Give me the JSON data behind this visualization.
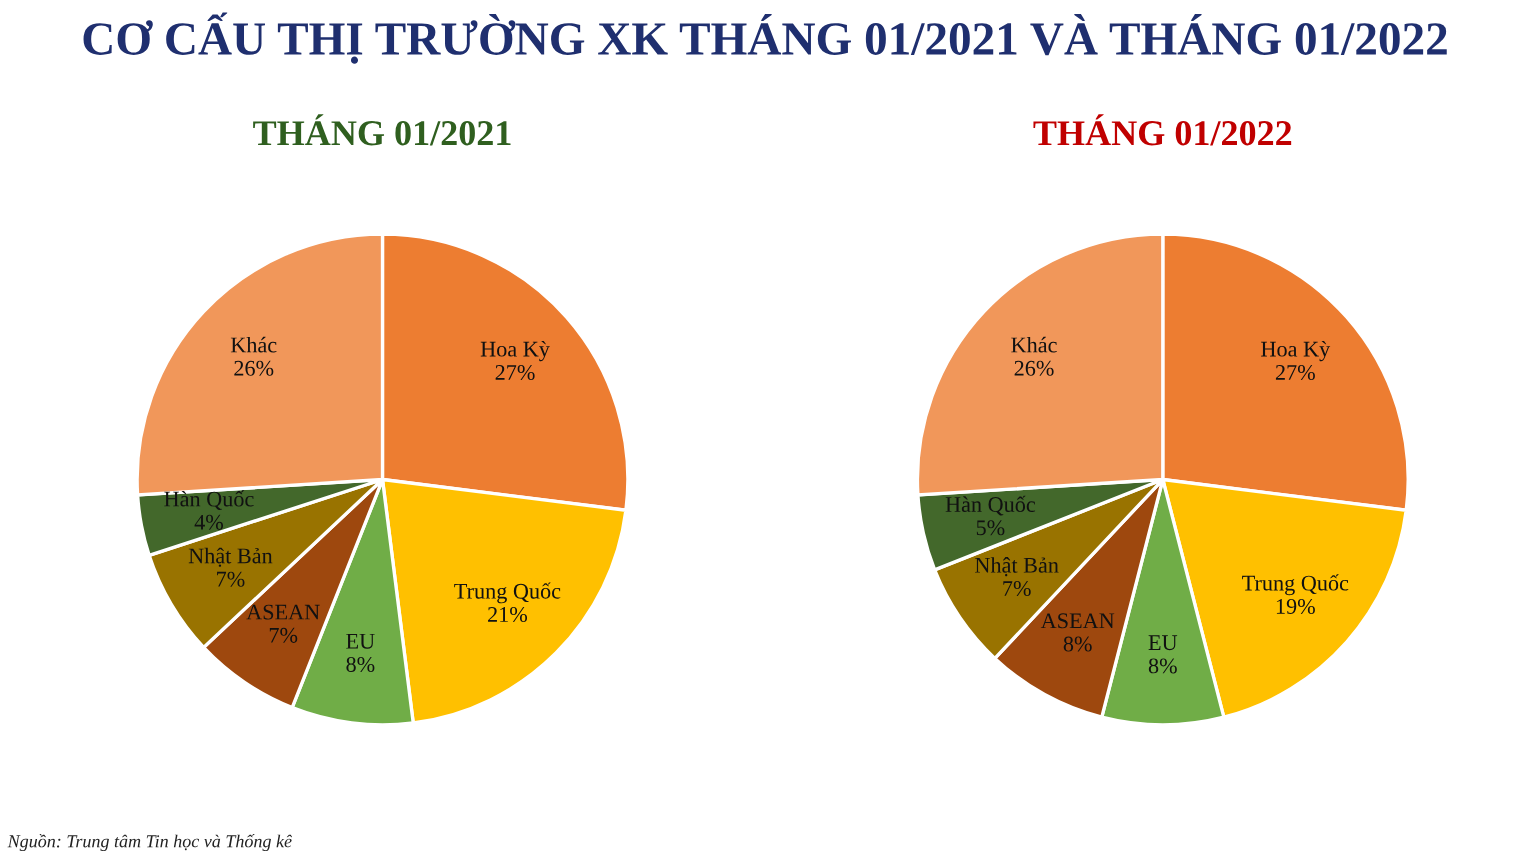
{
  "chart_data": [
    {
      "type": "pie",
      "title": "THÁNG 01/2021",
      "annotations": [
        "CƠ CẤU THỊ TRƯỜNG XK THÁNG 01/2021 VÀ THÁNG 01/2022",
        "Nguồn: Trung tâm Tin học và Thống kê"
      ],
      "categories": [
        "Hoa Kỳ",
        "Trung Quốc",
        "EU",
        "ASEAN",
        "Nhật Bản",
        "Hàn Quốc",
        "Khác"
      ],
      "values": [
        27,
        21,
        8,
        7,
        7,
        4,
        26
      ],
      "value_labels": [
        "27%",
        "21%",
        "8%",
        "7%",
        "7%",
        "4%",
        "26%"
      ],
      "colors": [
        "#ed7d31",
        "#ffc000",
        "#70ad47",
        "#9e480e",
        "#997300",
        "#43682b",
        "#f1975a"
      ]
    },
    {
      "type": "pie",
      "title": "THÁNG 01/2022",
      "categories": [
        "Hoa Kỳ",
        "Trung Quốc",
        "EU",
        "ASEAN",
        "Nhật Bản",
        "Hàn Quốc",
        "Khác"
      ],
      "values": [
        27,
        19,
        8,
        8,
        7,
        5,
        26
      ],
      "value_labels": [
        "27%",
        "19%",
        "8%",
        "8%",
        "7%",
        "5%",
        "26%"
      ],
      "colors": [
        "#ed7d31",
        "#ffc000",
        "#70ad47",
        "#9e480e",
        "#997300",
        "#43682b",
        "#f1975a"
      ]
    }
  ]
}
